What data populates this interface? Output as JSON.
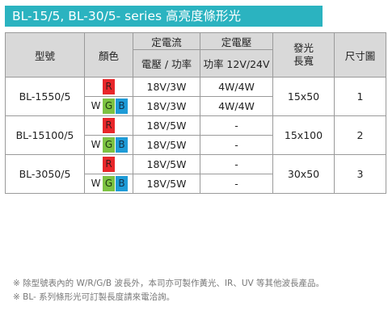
{
  "title": "BL-15/5, BL-30/5- series 高亮度條形光",
  "header": {
    "model": "型號",
    "color": "顏色",
    "current_group": "定電流",
    "current_sub": "電壓 / 功率",
    "voltage_group": "定電壓",
    "voltage_sub": "功率 12V/24V",
    "emit_length": "發光長寬",
    "size": "尺寸圖"
  },
  "rows": [
    {
      "model": "BL-1550/5",
      "emit": "15x50",
      "size": "1",
      "sub": [
        {
          "colors": [
            "R"
          ],
          "current": "18V/3W",
          "voltage": "4W/4W"
        },
        {
          "colors": [
            "W",
            "G",
            "B"
          ],
          "current": "18V/3W",
          "voltage": "4W/4W"
        }
      ]
    },
    {
      "model": "BL-15100/5",
      "emit": "15x100",
      "size": "2",
      "sub": [
        {
          "colors": [
            "R"
          ],
          "current": "18V/5W",
          "voltage": "-"
        },
        {
          "colors": [
            "W",
            "G",
            "B"
          ],
          "current": "18V/5W",
          "voltage": "-"
        }
      ]
    },
    {
      "model": "BL-3050/5",
      "emit": "30x50",
      "size": "3",
      "sub": [
        {
          "colors": [
            "R"
          ],
          "current": "18V/5W",
          "voltage": "-"
        },
        {
          "colors": [
            "W",
            "G",
            "B"
          ],
          "current": "18V/5W",
          "voltage": "-"
        }
      ]
    }
  ],
  "swatch_colors": {
    "R": "#e8262a",
    "W": "#ffffff",
    "G": "#7dc242",
    "B": "#1e9bd7"
  },
  "notes": [
    "※ 除型號表內的 W/R/G/B 波長外，本司亦可製作黃光、IR、UV 等其他波長產品。",
    "※ BL- 系列條形光可訂製長度請來電洽詢。"
  ]
}
